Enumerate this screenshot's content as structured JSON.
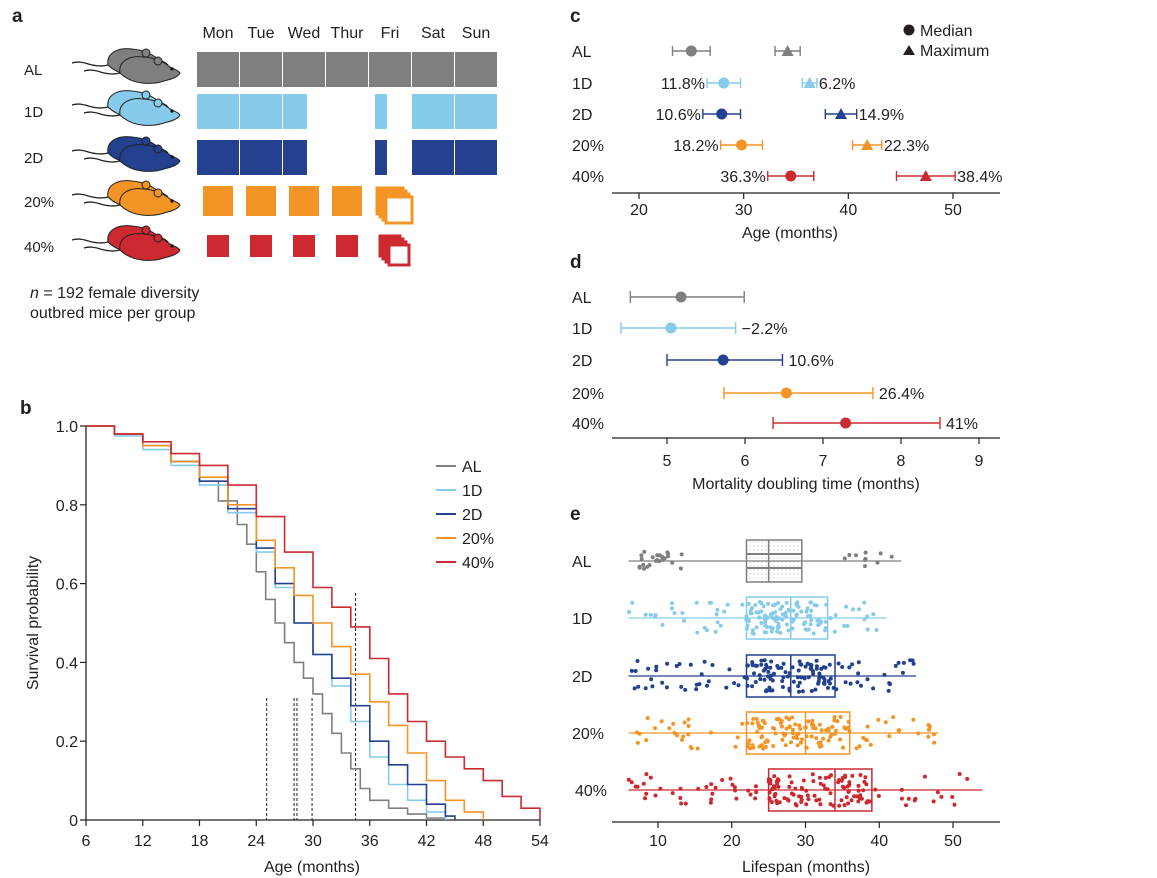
{
  "colors": {
    "AL": "#7f7f80",
    "1D": "#86cbe9",
    "2D": "#23418e",
    "20%": "#f39426",
    "40%": "#cc2a30"
  },
  "panel_a": {
    "label": "a",
    "days": [
      "Mon",
      "Tue",
      "Wed",
      "Thur",
      "Fri",
      "Sat",
      "Sun"
    ],
    "groups": [
      "AL",
      "1D",
      "2D",
      "20%",
      "40%"
    ],
    "note_italic": "n",
    "note_line1": " = 192 female diversity",
    "note_line2": "outbred mice per group"
  },
  "chart_data": [
    {
      "id": "b",
      "type": "line",
      "label": "b",
      "xlabel": "Age (months)",
      "ylabel": "Survival probability",
      "xlim": [
        6,
        54
      ],
      "ylim": [
        0,
        1.0
      ],
      "xticks": [
        6,
        12,
        18,
        24,
        30,
        36,
        42,
        48,
        54
      ],
      "yticks": [
        0,
        0.2,
        0.4,
        0.6,
        0.8,
        1.0
      ],
      "ytick_labels": [
        "0",
        "0.2",
        "0.4",
        "0.6",
        "0.8",
        "1.0"
      ],
      "legend": [
        "AL",
        "1D",
        "2D",
        "20%",
        "40%"
      ],
      "medians": [
        25.1,
        28.0,
        28.3,
        29.9,
        34.5
      ],
      "series": [
        {
          "name": "AL",
          "x": [
            6,
            9,
            12,
            15,
            18,
            20,
            22,
            23,
            24,
            25,
            26,
            27,
            28,
            29,
            30,
            31,
            32,
            33,
            34,
            35,
            36,
            38,
            40,
            42,
            44
          ],
          "y": [
            1.0,
            0.98,
            0.95,
            0.91,
            0.86,
            0.81,
            0.75,
            0.7,
            0.63,
            0.56,
            0.5,
            0.45,
            0.4,
            0.36,
            0.32,
            0.27,
            0.22,
            0.17,
            0.13,
            0.08,
            0.05,
            0.03,
            0.015,
            0.005,
            0
          ]
        },
        {
          "name": "1D",
          "x": [
            6,
            9,
            12,
            15,
            18,
            21,
            24,
            26,
            28,
            30,
            32,
            34,
            36,
            38,
            40,
            42,
            44
          ],
          "y": [
            1.0,
            0.975,
            0.94,
            0.9,
            0.85,
            0.78,
            0.68,
            0.59,
            0.5,
            0.42,
            0.34,
            0.25,
            0.16,
            0.09,
            0.05,
            0.02,
            0
          ]
        },
        {
          "name": "2D",
          "x": [
            6,
            9,
            12,
            15,
            18,
            21,
            24,
            26,
            28,
            30,
            32,
            34,
            36,
            38,
            40,
            42,
            44,
            45
          ],
          "y": [
            1.0,
            0.98,
            0.95,
            0.91,
            0.86,
            0.79,
            0.69,
            0.6,
            0.5,
            0.42,
            0.36,
            0.29,
            0.2,
            0.14,
            0.09,
            0.04,
            0.01,
            0
          ]
        },
        {
          "name": "20%",
          "x": [
            6,
            9,
            12,
            15,
            18,
            21,
            24,
            26,
            28,
            30,
            32,
            34,
            36,
            38,
            40,
            42,
            44,
            46,
            48
          ],
          "y": [
            1.0,
            0.98,
            0.95,
            0.91,
            0.87,
            0.8,
            0.71,
            0.64,
            0.57,
            0.5,
            0.44,
            0.37,
            0.3,
            0.24,
            0.17,
            0.1,
            0.05,
            0.02,
            0
          ]
        },
        {
          "name": "40%",
          "x": [
            6,
            9,
            12,
            15,
            18,
            21,
            24,
            27,
            30,
            32,
            34,
            36,
            38,
            40,
            42,
            44,
            46,
            48,
            50,
            52,
            54
          ],
          "y": [
            1.0,
            0.98,
            0.96,
            0.93,
            0.9,
            0.85,
            0.77,
            0.68,
            0.59,
            0.54,
            0.49,
            0.41,
            0.32,
            0.25,
            0.2,
            0.16,
            0.13,
            0.1,
            0.06,
            0.03,
            0
          ]
        }
      ]
    },
    {
      "id": "c",
      "type": "scatter",
      "label": "c",
      "xlabel": "Age (months)",
      "xlim": [
        17,
        52
      ],
      "xticks": [
        20,
        30,
        40,
        50
      ],
      "legend": [
        "Median",
        "Maximum"
      ],
      "groups": [
        "AL",
        "1D",
        "2D",
        "20%",
        "40%"
      ],
      "median": [
        25.0,
        28.1,
        27.9,
        29.8,
        34.5
      ],
      "median_err": [
        1.8,
        1.6,
        1.8,
        2.0,
        2.2
      ],
      "median_labels": [
        "",
        "11.8%",
        "10.6%",
        "18.2%",
        "36.3%"
      ],
      "maximum": [
        34.2,
        36.3,
        39.3,
        41.8,
        47.4
      ],
      "maximum_err": [
        1.2,
        0.7,
        1.5,
        1.4,
        2.8
      ],
      "maximum_labels": [
        "",
        "6.2%",
        "14.9%",
        "22.3%",
        "38.4%"
      ]
    },
    {
      "id": "d",
      "type": "scatter",
      "label": "d",
      "xlabel": "Mortality doubling time (months)",
      "xlim": [
        4.2,
        9.3
      ],
      "xticks": [
        5,
        6,
        7,
        8,
        9
      ],
      "groups": [
        "AL",
        "1D",
        "2D",
        "20%",
        "40%"
      ],
      "values": [
        5.18,
        5.05,
        5.72,
        6.53,
        7.29
      ],
      "lo": [
        4.53,
        4.41,
        5.0,
        5.73,
        6.36
      ],
      "hi": [
        5.99,
        5.88,
        6.48,
        7.64,
        8.5
      ],
      "labels": [
        "",
        "−2.2%",
        "10.6%",
        "26.4%",
        "41%"
      ]
    },
    {
      "id": "e",
      "type": "box",
      "label": "e",
      "xlabel": "Lifespan (months)",
      "xlim": [
        3,
        57
      ],
      "xticks": [
        10,
        20,
        30,
        40,
        50
      ],
      "groups": [
        "AL",
        "1D",
        "2D",
        "20%",
        "40%"
      ],
      "box": [
        {
          "min": 6,
          "q1": 22,
          "median": 25,
          "q3": 29.5,
          "max": 43
        },
        {
          "min": 6,
          "q1": 22,
          "median": 28,
          "q3": 33,
          "max": 41
        },
        {
          "min": 6,
          "q1": 22,
          "median": 28,
          "q3": 34,
          "max": 45
        },
        {
          "min": 6,
          "q1": 22,
          "median": 30,
          "q3": 36,
          "max": 48
        },
        {
          "min": 6,
          "q1": 25,
          "median": 34,
          "q3": 39,
          "max": 54
        }
      ]
    }
  ]
}
